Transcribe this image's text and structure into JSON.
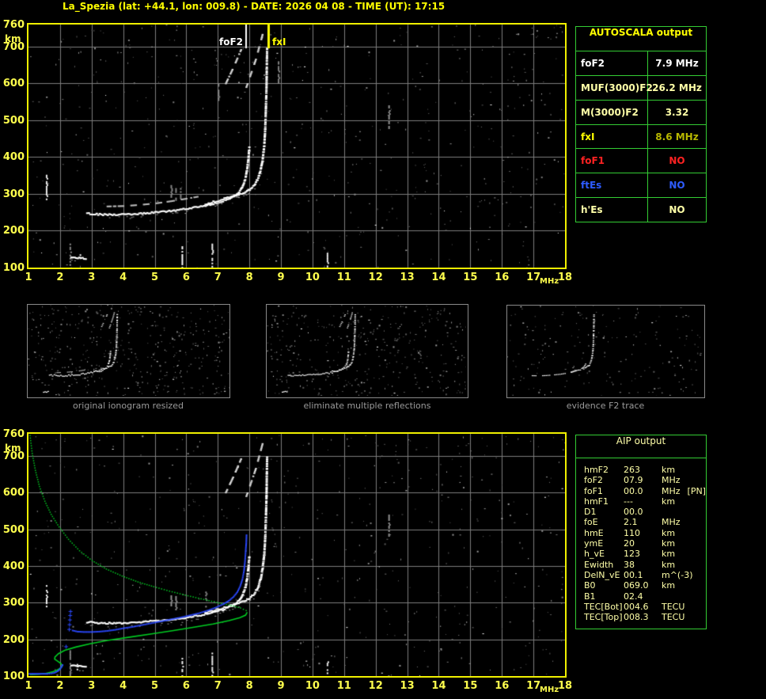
{
  "header": {
    "title": "La_Spezia (lat: +44.1, lon: 009.8) - DATE: 2026 04 08 - TIME (UT): 17:15"
  },
  "palette": {
    "title_yellow": "#ffff00",
    "tick_yellow": "#ffff4d",
    "plot_border_yellow": "#f0f000",
    "grid_gray": "#7d7d7d",
    "table_green": "#33cc33",
    "pale_yellow": "#ffffa8",
    "olive": "#b8b800",
    "red": "#ff2222",
    "blue": "#2e5cff",
    "trace_white": "#ffffff",
    "profile_green": "#00cc22",
    "profile_blue": "#2b49ff",
    "caption_gray": "#9a9a9a",
    "thumb_border": "#8a8a8a"
  },
  "autoscala": {
    "title": "AUTOSCALA output",
    "rows": [
      {
        "label": "foF2",
        "value": "7.9 MHz",
        "label_color": "#ffffff",
        "value_color": "#ffffff"
      },
      {
        "label": "MUF(3000)F2",
        "value": "26.2 MHz",
        "label_color": "#ffffa8",
        "value_color": "#ffffa8"
      },
      {
        "label": "M(3000)F2",
        "value": "3.32",
        "label_color": "#ffffa8",
        "value_color": "#ffffa8"
      },
      {
        "label": "fxI",
        "value": "8.6 MHz",
        "label_color": "#ffff00",
        "value_color": "#b8b800"
      },
      {
        "label": "foF1",
        "value": "NO",
        "label_color": "#ff2222",
        "value_color": "#ff2222"
      },
      {
        "label": "ftEs",
        "value": "NO",
        "label_color": "#2e5cff",
        "value_color": "#2e5cff"
      },
      {
        "label": "h'Es",
        "value": "NO",
        "label_color": "#ffffa8",
        "value_color": "#ffffa8"
      }
    ]
  },
  "aip": {
    "title": "AIP output",
    "rows": [
      {
        "name": "hmF2",
        "value": "263",
        "unit": "km"
      },
      {
        "name": "foF2",
        "value": "07.9",
        "unit": "MHz"
      },
      {
        "name": "foF1",
        "value": "00.0",
        "unit": "MHz  [PN]"
      },
      {
        "name": "hmF1",
        "value": "---",
        "unit": "km"
      },
      {
        "name": "D1",
        "value": "00.0",
        "unit": ""
      },
      {
        "name": "foE",
        "value": "2.1",
        "unit": "MHz"
      },
      {
        "name": "hmE",
        "value": "110",
        "unit": "km"
      },
      {
        "name": "ymE",
        "value": "20",
        "unit": "km"
      },
      {
        "name": "h_vE",
        "value": "123",
        "unit": "km"
      },
      {
        "name": "Ewidth",
        "value": "38",
        "unit": "km"
      },
      {
        "name": "DelN_vE",
        "value": "00.1",
        "unit": "m^(-3)"
      },
      {
        "name": "B0",
        "value": "069.0",
        "unit": "km"
      },
      {
        "name": "B1",
        "value": "02.4",
        "unit": ""
      },
      {
        "name": "TEC[Bot]",
        "value": "004.6",
        "unit": "TECU"
      },
      {
        "name": "TEC[Top]",
        "value": "008.3",
        "unit": "TECU"
      }
    ]
  },
  "thumbnails": [
    {
      "caption": "original ionogram resized"
    },
    {
      "caption": "eliminate multiple reflections"
    },
    {
      "caption": "evidence F2 trace"
    }
  ],
  "chart_data": {
    "type": "scatter",
    "description": "Ionograms: virtual height (km) vs sounding frequency (MHz)",
    "plots": [
      {
        "id": "top",
        "xlabel": "MHz",
        "ylabel": "km",
        "xlim": [
          1,
          18
        ],
        "ylim": [
          100,
          760
        ],
        "xticks": [
          1,
          2,
          3,
          4,
          5,
          6,
          7,
          8,
          9,
          10,
          11,
          12,
          13,
          14,
          15,
          16,
          17,
          18
        ],
        "yticks": [
          760,
          700,
          600,
          500,
          400,
          300,
          200,
          100
        ],
        "grid": true,
        "markers": [
          {
            "label": "foF2",
            "freq_mhz": 7.9,
            "color": "#ffffff",
            "width": 2
          },
          {
            "label": "fxI",
            "freq_mhz": 8.6,
            "color": "#ffff00",
            "width": 3
          }
        ],
        "series": [
          "flat",
          "second",
          "e_blob",
          "x_branch",
          "diag1",
          "diag2"
        ],
        "noise": {
          "seed": 11,
          "gray": 520,
          "white": 70
        },
        "streaks": [
          [
            1.55,
            287,
            352,
            "w"
          ],
          [
            2.62,
            119,
            136,
            "w"
          ],
          [
            5.85,
            100,
            158,
            "w"
          ],
          [
            6.8,
            100,
            165,
            "w"
          ],
          [
            10.45,
            100,
            140,
            "w"
          ],
          [
            2.3,
            100,
            178,
            "g"
          ],
          [
            5.5,
            293,
            324,
            "g"
          ],
          [
            5.65,
            282,
            320,
            "g"
          ],
          [
            5.8,
            286,
            316,
            "g"
          ],
          [
            12.4,
            480,
            545,
            "g"
          ],
          [
            7.0,
            555,
            600,
            "g"
          ],
          [
            8.9,
            600,
            660,
            "g"
          ]
        ]
      },
      {
        "id": "bottom",
        "xlabel": "MHz",
        "ylabel": "km",
        "xlim": [
          1,
          18
        ],
        "ylim": [
          100,
          760
        ],
        "xticks": [
          1,
          2,
          3,
          4,
          5,
          6,
          7,
          8,
          9,
          10,
          11,
          12,
          13,
          14,
          15,
          16,
          17,
          18
        ],
        "yticks": [
          760,
          700,
          600,
          500,
          400,
          300,
          200,
          100
        ],
        "grid": true,
        "markers": [],
        "series": [
          "flat",
          "e_blob",
          "x_branch",
          "diag1",
          "diag2",
          "green_top",
          "green_bottom",
          "blue_low",
          "blue_col",
          "blue_main"
        ],
        "noise": {
          "seed": 23,
          "gray": 500,
          "white": 60
        },
        "streaks": [
          [
            1.55,
            287,
            352,
            "w"
          ],
          [
            2.5,
            118,
            133,
            "w"
          ],
          [
            5.85,
            100,
            158,
            "w"
          ],
          [
            6.8,
            100,
            168,
            "w"
          ],
          [
            10.45,
            100,
            140,
            "w"
          ],
          [
            2.3,
            100,
            170,
            "g"
          ],
          [
            5.5,
            293,
            320,
            "g"
          ],
          [
            5.65,
            282,
            318,
            "g"
          ],
          [
            12.4,
            480,
            540,
            "g"
          ],
          [
            6.6,
            290,
            330,
            "g"
          ]
        ]
      }
    ],
    "traces": {
      "flat": {
        "style": "trace",
        "color": "#ffffff",
        "points": [
          [
            2.85,
            247
          ],
          [
            3.1,
            245
          ],
          [
            3.4,
            244
          ],
          [
            3.8,
            244
          ],
          [
            4.2,
            245
          ],
          [
            4.6,
            247
          ],
          [
            5.0,
            250
          ],
          [
            5.4,
            253
          ],
          [
            5.8,
            257
          ],
          [
            6.2,
            262
          ],
          [
            6.6,
            268
          ],
          [
            6.9,
            274
          ],
          [
            7.2,
            282
          ],
          [
            7.45,
            292
          ],
          [
            7.6,
            300
          ],
          [
            7.72,
            312
          ],
          [
            7.8,
            326
          ],
          [
            7.87,
            344
          ],
          [
            7.92,
            368
          ],
          [
            7.96,
            398
          ],
          [
            7.99,
            430
          ]
        ]
      },
      "second": {
        "style": "dashtrace",
        "color": "#bbbbbb",
        "points": [
          [
            3.5,
            266
          ],
          [
            4.0,
            267
          ],
          [
            4.5,
            270
          ],
          [
            5.0,
            274
          ],
          [
            5.5,
            280
          ],
          [
            6.0,
            287
          ],
          [
            6.4,
            293
          ]
        ]
      },
      "e_blob": {
        "style": "trace",
        "color": "#ffffff",
        "points": [
          [
            2.35,
            128
          ],
          [
            2.6,
            126
          ],
          [
            2.85,
            125
          ]
        ]
      },
      "x_branch": {
        "style": "trace",
        "color": "#ffffff",
        "points": [
          [
            6.6,
            273
          ],
          [
            6.9,
            279
          ],
          [
            7.2,
            287
          ],
          [
            7.5,
            295
          ],
          [
            7.8,
            303
          ],
          [
            8.0,
            312
          ],
          [
            8.15,
            325
          ],
          [
            8.27,
            343
          ],
          [
            8.35,
            366
          ],
          [
            8.41,
            395
          ],
          [
            8.46,
            432
          ],
          [
            8.49,
            478
          ],
          [
            8.51,
            530
          ],
          [
            8.53,
            590
          ],
          [
            8.54,
            650
          ],
          [
            8.55,
            700
          ]
        ]
      },
      "diag1": {
        "style": "dashtrace",
        "color": "#dddddd",
        "points": [
          [
            7.25,
            600
          ],
          [
            7.5,
            645
          ],
          [
            7.75,
            695
          ]
        ]
      },
      "diag2": {
        "style": "dashtrace",
        "color": "#dddddd",
        "points": [
          [
            7.9,
            590
          ],
          [
            8.2,
            665
          ],
          [
            8.45,
            745
          ]
        ]
      },
      "green_top": {
        "style": "dotline",
        "color": "#00cc22",
        "points": [
          [
            1.03,
            757
          ],
          [
            1.1,
            708
          ],
          [
            1.2,
            662
          ],
          [
            1.33,
            618
          ],
          [
            1.5,
            578
          ],
          [
            1.7,
            542
          ],
          [
            1.95,
            508
          ],
          [
            2.25,
            474
          ],
          [
            2.6,
            443
          ],
          [
            3.0,
            416
          ],
          [
            3.45,
            393
          ],
          [
            3.95,
            374
          ],
          [
            4.45,
            358
          ],
          [
            4.95,
            345
          ],
          [
            5.45,
            333
          ],
          [
            5.95,
            322
          ],
          [
            6.45,
            312
          ],
          [
            6.95,
            302
          ],
          [
            7.4,
            294
          ],
          [
            7.7,
            287
          ],
          [
            7.88,
            280
          ],
          [
            7.93,
            274
          ]
        ]
      },
      "green_bottom": {
        "style": "line",
        "color": "#00cc22",
        "points": [
          [
            7.93,
            274
          ],
          [
            7.88,
            266
          ],
          [
            7.7,
            259
          ],
          [
            7.35,
            251
          ],
          [
            6.85,
            242
          ],
          [
            6.25,
            233
          ],
          [
            5.6,
            224
          ],
          [
            4.9,
            215
          ],
          [
            4.2,
            206
          ],
          [
            3.5,
            197
          ],
          [
            2.95,
            188
          ],
          [
            2.5,
            179
          ],
          [
            2.15,
            170
          ],
          [
            1.95,
            161
          ],
          [
            1.84,
            152
          ],
          [
            1.83,
            146
          ],
          [
            1.93,
            140
          ],
          [
            2.03,
            134
          ],
          [
            2.07,
            128
          ],
          [
            2.02,
            122
          ],
          [
            1.9,
            116
          ],
          [
            1.75,
            111
          ],
          [
            1.55,
            107
          ],
          [
            1.3,
            105
          ],
          [
            1.05,
            104
          ]
        ]
      },
      "blue_low": {
        "style": "bluedots",
        "color": "#2b49ff",
        "points": [
          [
            1.02,
            106
          ],
          [
            1.15,
            106
          ],
          [
            1.3,
            106
          ],
          [
            1.45,
            106
          ],
          [
            1.6,
            106
          ],
          [
            1.72,
            107
          ],
          [
            1.83,
            109
          ],
          [
            1.92,
            113
          ],
          [
            1.99,
            118
          ],
          [
            2.04,
            124
          ],
          [
            2.08,
            130
          ],
          [
            2.1,
            136
          ]
        ]
      },
      "blue_col": {
        "style": "plus",
        "color": "#2b49ff",
        "points": [
          [
            2.18,
            181
          ],
          [
            2.28,
            228
          ],
          [
            2.29,
            241
          ],
          [
            2.3,
            254
          ],
          [
            2.31,
            266
          ],
          [
            2.32,
            277
          ]
        ]
      },
      "blue_main": {
        "style": "bluedots",
        "color": "#2b49ff",
        "points": [
          [
            2.4,
            224
          ],
          [
            2.55,
            221
          ],
          [
            2.75,
            220
          ],
          [
            3.0,
            220
          ],
          [
            3.25,
            221
          ],
          [
            3.5,
            223
          ],
          [
            3.75,
            226
          ],
          [
            4.0,
            230
          ],
          [
            4.3,
            234
          ],
          [
            4.6,
            239
          ],
          [
            4.9,
            244
          ],
          [
            5.2,
            249
          ],
          [
            5.5,
            254
          ],
          [
            5.8,
            259
          ],
          [
            6.1,
            265
          ],
          [
            6.4,
            271
          ],
          [
            6.7,
            279
          ],
          [
            6.95,
            287
          ],
          [
            7.15,
            295
          ],
          [
            7.35,
            305
          ],
          [
            7.5,
            316
          ],
          [
            7.62,
            329
          ],
          [
            7.71,
            345
          ],
          [
            7.78,
            364
          ],
          [
            7.83,
            387
          ],
          [
            7.86,
            412
          ],
          [
            7.88,
            438
          ],
          [
            7.9,
            462
          ],
          [
            7.91,
            488
          ]
        ]
      }
    },
    "thumbs": [
      {
        "series": [
          "flat",
          "second",
          "e_blob",
          "x_branch",
          "diag1",
          "diag2"
        ],
        "noise": {
          "seed": 5,
          "gray": 380,
          "white": 55
        }
      },
      {
        "series": [
          "flat",
          "e_blob",
          "x_branch",
          "diag1",
          "diag2"
        ],
        "noise": {
          "seed": 9,
          "gray": 340,
          "white": 50
        }
      },
      {
        "series": [
          "x_branch",
          "flat_sparse"
        ],
        "noise": {
          "seed": 13,
          "gray": 170,
          "white": 28
        }
      }
    ],
    "thumb_extra_traces": {
      "flat_sparse": {
        "style": "dashtrace",
        "color": "#ffffff",
        "points": [
          [
            3.2,
            245
          ],
          [
            3.8,
            244
          ],
          [
            4.4,
            246
          ],
          [
            5.0,
            250
          ],
          [
            5.6,
            255
          ],
          [
            6.2,
            263
          ],
          [
            6.7,
            272
          ],
          [
            7.1,
            282
          ],
          [
            7.4,
            292
          ],
          [
            7.7,
            310
          ],
          [
            7.9,
            340
          ]
        ]
      }
    }
  }
}
